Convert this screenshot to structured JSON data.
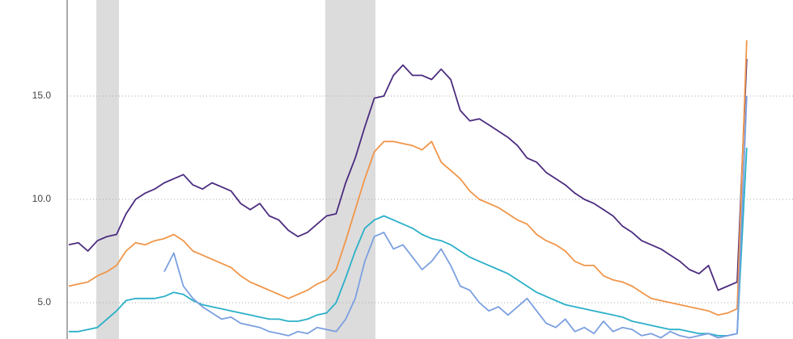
{
  "chart_data": {
    "type": "line",
    "categories": [
      null,
      null,
      null,
      null,
      null,
      null,
      null,
      null,
      null,
      null,
      null,
      null,
      null,
      null,
      null,
      null,
      null,
      null,
      null,
      null,
      null,
      null,
      null,
      null,
      null,
      null,
      null,
      null,
      null,
      null,
      null,
      null,
      null,
      null,
      null,
      null,
      null,
      null,
      null,
      null,
      null,
      null,
      null,
      null,
      null,
      null,
      null,
      null,
      null,
      null,
      null,
      null,
      null,
      null,
      null,
      null,
      null,
      null,
      null,
      null,
      null,
      null,
      null,
      null,
      null,
      null,
      null,
      null,
      null,
      null,
      null,
      null
    ],
    "ylim": [
      3.24,
      19.65
    ],
    "yticks": [
      {
        "value": 5,
        "label": "5.0"
      },
      {
        "value": 10,
        "label": "10.0"
      },
      {
        "value": 15,
        "label": "15.0"
      }
    ],
    "grid": true,
    "series": [
      {
        "color": "#4b2c7f",
        "values": [
          7.8,
          7.9,
          7.5,
          8.0,
          8.2,
          8.3,
          9.3,
          10.0,
          10.3,
          10.5,
          10.8,
          11.0,
          11.2,
          10.7,
          10.5,
          10.8,
          10.6,
          10.4,
          9.8,
          9.5,
          9.8,
          9.2,
          9.0,
          8.5,
          8.2,
          8.4,
          8.8,
          9.2,
          9.3,
          10.8,
          12.0,
          13.5,
          14.9,
          15.0,
          16.0,
          16.5,
          16.0,
          16.0,
          15.8,
          16.3,
          15.8,
          14.3,
          13.8,
          13.9,
          13.6,
          13.3,
          13.0,
          12.6,
          12.0,
          11.8,
          11.3,
          11.0,
          10.7,
          10.3,
          10.0,
          9.8,
          9.5,
          9.2,
          8.7,
          8.4,
          8.0,
          7.8,
          7.6,
          7.3,
          7.0,
          6.6,
          6.4,
          6.8,
          5.6,
          5.8,
          6.0,
          16.8
        ]
      },
      {
        "color": "#f0964a",
        "values": [
          5.8,
          5.9,
          6.0,
          6.3,
          6.5,
          6.8,
          7.5,
          7.9,
          7.8,
          8.0,
          8.1,
          8.3,
          8.0,
          7.5,
          7.3,
          7.1,
          6.9,
          6.7,
          6.3,
          6.0,
          5.8,
          5.6,
          5.4,
          5.2,
          5.4,
          5.6,
          5.9,
          6.1,
          6.6,
          8.0,
          9.5,
          11.0,
          12.3,
          12.8,
          12.8,
          12.7,
          12.6,
          12.4,
          12.8,
          11.8,
          11.4,
          11.0,
          10.4,
          10.0,
          9.8,
          9.6,
          9.3,
          9.0,
          8.8,
          8.3,
          8.0,
          7.8,
          7.5,
          7.0,
          6.8,
          6.8,
          6.3,
          6.1,
          6.0,
          5.8,
          5.5,
          5.2,
          5.1,
          5.0,
          4.9,
          4.8,
          4.7,
          4.6,
          4.4,
          4.5,
          4.7,
          17.7
        ]
      },
      {
        "color": "#2ab0c8",
        "values": [
          3.6,
          3.6,
          3.7,
          3.8,
          4.2,
          4.6,
          5.1,
          5.2,
          5.2,
          5.2,
          5.3,
          5.5,
          5.4,
          5.1,
          4.9,
          4.8,
          4.7,
          4.6,
          4.5,
          4.4,
          4.3,
          4.2,
          4.2,
          4.1,
          4.1,
          4.2,
          4.4,
          4.5,
          5.0,
          6.2,
          7.5,
          8.6,
          9.0,
          9.2,
          9.0,
          8.8,
          8.6,
          8.3,
          8.1,
          8.0,
          7.8,
          7.5,
          7.2,
          7.0,
          6.8,
          6.6,
          6.4,
          6.1,
          5.8,
          5.5,
          5.3,
          5.1,
          4.9,
          4.8,
          4.7,
          4.6,
          4.5,
          4.4,
          4.3,
          4.1,
          4.0,
          3.9,
          3.8,
          3.7,
          3.7,
          3.6,
          3.5,
          3.5,
          3.4,
          3.4,
          3.5,
          12.5
        ]
      },
      {
        "color": "#7b9fe0",
        "values": [
          null,
          null,
          null,
          null,
          null,
          null,
          null,
          null,
          null,
          null,
          6.5,
          7.4,
          5.8,
          5.2,
          4.8,
          4.5,
          4.2,
          4.3,
          4.0,
          3.9,
          3.8,
          3.6,
          3.5,
          3.4,
          3.6,
          3.5,
          3.8,
          3.7,
          3.6,
          4.2,
          5.2,
          7.0,
          8.2,
          8.4,
          7.6,
          7.8,
          7.2,
          6.6,
          7.0,
          7.6,
          6.8,
          5.8,
          5.6,
          5.0,
          4.6,
          4.8,
          4.4,
          4.8,
          5.2,
          4.6,
          4.0,
          3.8,
          4.2,
          3.6,
          3.8,
          3.5,
          4.1,
          3.6,
          3.8,
          3.7,
          3.4,
          3.5,
          3.3,
          3.6,
          3.4,
          3.3,
          3.4,
          3.5,
          3.3,
          3.4,
          3.5,
          15.0
        ]
      }
    ]
  }
}
